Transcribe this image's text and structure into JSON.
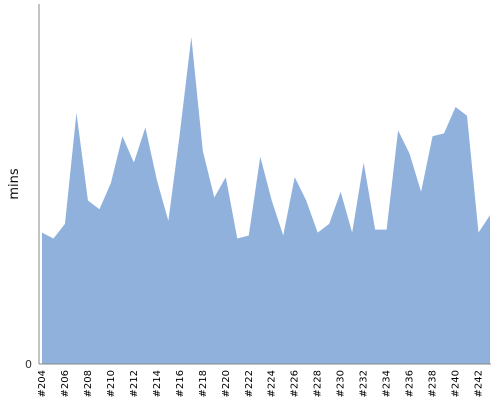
{
  "chart_data": {
    "type": "area",
    "x": [
      "#204",
      "#205",
      "#206",
      "#207",
      "#208",
      "#209",
      "#210",
      "#211",
      "#212",
      "#213",
      "#214",
      "#215",
      "#216",
      "#217",
      "#218",
      "#219",
      "#220",
      "#221",
      "#222",
      "#223",
      "#224",
      "#225",
      "#226",
      "#227",
      "#228",
      "#229",
      "#230",
      "#231",
      "#232",
      "#233",
      "#234",
      "#235",
      "#236",
      "#237",
      "#238",
      "#239",
      "#240",
      "#241",
      "#242",
      "#243"
    ],
    "tick_labels": [
      "#204",
      "#206",
      "#208",
      "#210",
      "#212",
      "#214",
      "#216",
      "#218",
      "#220",
      "#222",
      "#224",
      "#226",
      "#228",
      "#230",
      "#232",
      "#234",
      "#236",
      "#238",
      "#240",
      "#242"
    ],
    "series": [
      {
        "values": [
          45,
          43,
          48,
          86,
          56,
          53,
          62,
          78,
          69,
          81,
          63,
          49,
          79,
          112,
          73,
          57,
          64,
          43,
          44,
          71,
          56,
          44,
          64,
          56,
          45,
          48,
          59,
          45,
          69,
          46,
          46,
          80,
          72,
          59,
          78,
          79,
          88,
          85,
          45,
          51
        ]
      }
    ],
    "ylabel": "mins",
    "xlabel": "",
    "ylim": [
      0,
      100
    ],
    "y_tick_labels": [
      "0"
    ],
    "color": "#8fb1dc",
    "grid": false
  }
}
